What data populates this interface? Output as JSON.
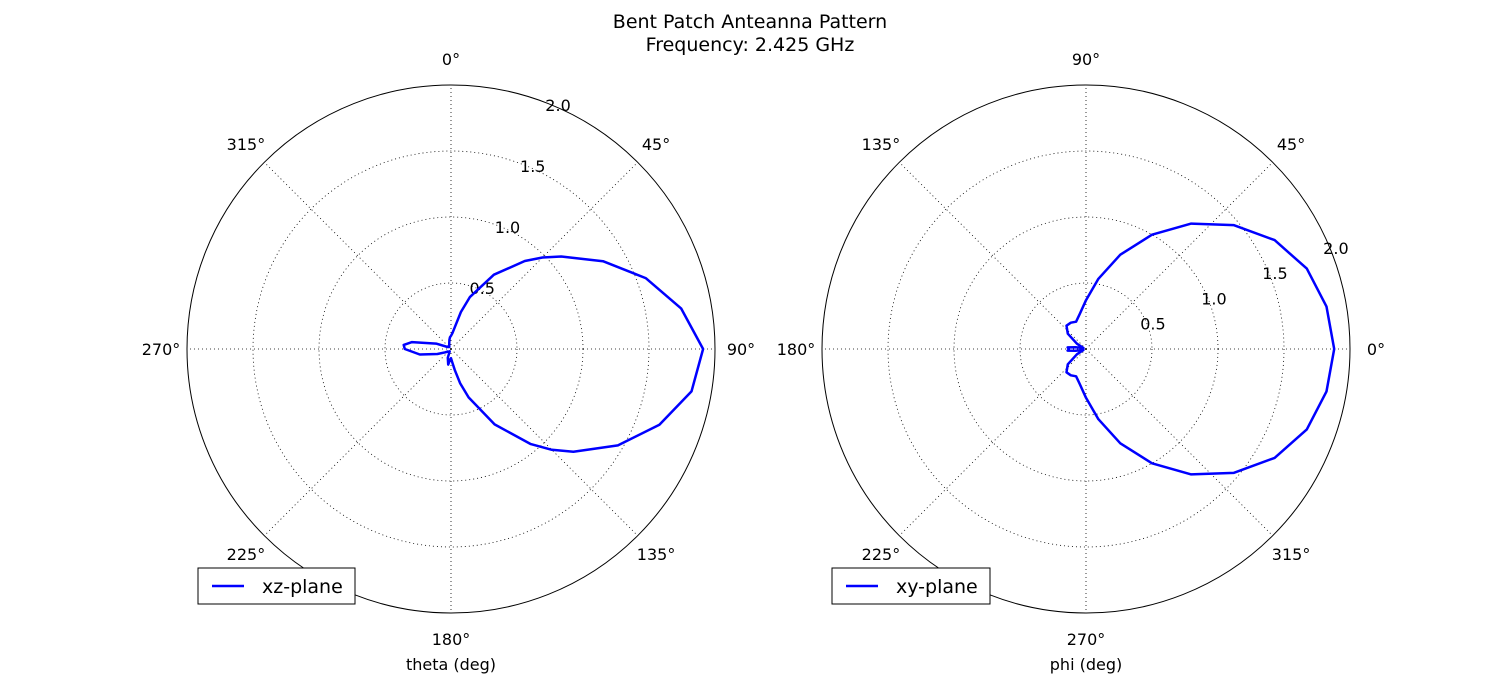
{
  "figure": {
    "title_line1": "Bent Patch Anteanna Pattern",
    "title_line2": "Frequency: 2.425 GHz"
  },
  "chart_data": [
    {
      "type": "line",
      "projection": "polar",
      "series": [
        {
          "name": "xz-plane",
          "color": "#0000ff",
          "theta_deg": [
            0,
            5,
            10,
            15,
            20,
            30,
            40,
            45,
            50,
            60,
            70,
            80,
            90,
            100,
            110,
            120,
            130,
            135,
            140,
            150,
            160,
            165,
            170,
            175,
            180,
            185,
            190,
            200,
            210,
            220,
            230,
            240,
            250,
            260,
            270,
            275,
            280,
            290,
            300,
            320,
            340,
            350,
            355,
            360
          ],
          "r": [
            0.1,
            0.12,
            0.17,
            0.29,
            0.42,
            0.65,
            0.87,
            0.98,
            1.09,
            1.33,
            1.57,
            1.77,
            1.91,
            1.85,
            1.68,
            1.46,
            1.21,
            1.08,
            0.94,
            0.66,
            0.39,
            0.27,
            0.16,
            0.1,
            0.07,
            0.08,
            0.12,
            0.07,
            0.02,
            0.03,
            0.03,
            0.05,
            0.11,
            0.24,
            0.35,
            0.36,
            0.3,
            0.12,
            0.03,
            0.02,
            0.04,
            0.07,
            0.09,
            0.1
          ]
        }
      ],
      "rlim": [
        0,
        2.0
      ],
      "r_ticks": [
        "0.5",
        "1.0",
        "1.5",
        "2.0"
      ],
      "theta_zero_location": "top",
      "theta_direction": "clockwise",
      "theta_tick_labels": [
        "0°",
        "45°",
        "90°",
        "135°",
        "180°",
        "225°",
        "270°",
        "315°"
      ],
      "xlabel": "theta (deg)",
      "grid": true,
      "legend": {
        "loc": "lower left",
        "entries": [
          "xz-plane"
        ]
      }
    },
    {
      "type": "line",
      "projection": "polar",
      "series": [
        {
          "name": "xy-plane",
          "color": "#0000ff",
          "theta_deg": [
            0,
            10,
            20,
            30,
            40,
            50,
            60,
            70,
            80,
            90,
            100,
            110,
            120,
            130,
            140,
            150,
            160,
            170,
            175,
            180,
            185,
            190,
            200,
            210,
            220,
            230,
            240,
            250,
            260,
            270,
            280,
            290,
            300,
            310,
            320,
            330,
            340,
            350,
            360
          ],
          "r": [
            1.88,
            1.85,
            1.78,
            1.65,
            1.46,
            1.24,
            1.0,
            0.76,
            0.54,
            0.37,
            0.27,
            0.22,
            0.23,
            0.23,
            0.18,
            0.08,
            0.02,
            0.08,
            0.14,
            0.13,
            0.14,
            0.08,
            0.02,
            0.08,
            0.18,
            0.23,
            0.23,
            0.22,
            0.27,
            0.37,
            0.54,
            0.76,
            1.0,
            1.24,
            1.46,
            1.65,
            1.78,
            1.85,
            1.88
          ]
        }
      ],
      "rlim": [
        0,
        2.0
      ],
      "r_ticks": [
        "0.5",
        "1.0",
        "1.5",
        "2.0"
      ],
      "theta_zero_location": "right",
      "theta_direction": "counterclockwise",
      "theta_tick_labels": [
        "0°",
        "45°",
        "90°",
        "135°",
        "180°",
        "225°",
        "270°",
        "315°"
      ],
      "xlabel": "phi (deg)",
      "grid": true,
      "legend": {
        "loc": "lower left",
        "entries": [
          "xy-plane"
        ]
      }
    }
  ]
}
